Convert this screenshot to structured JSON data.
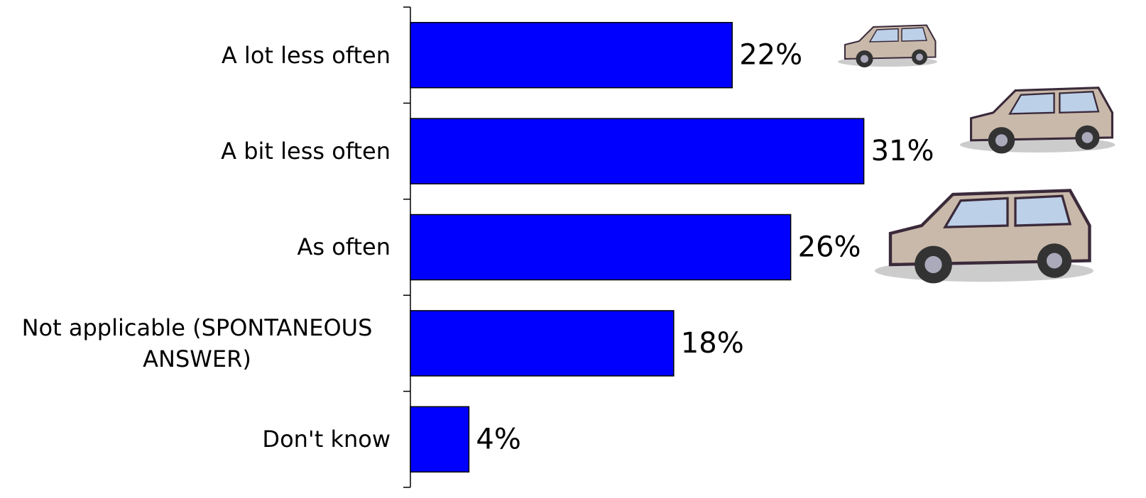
{
  "chart_data": {
    "type": "bar",
    "orientation": "horizontal",
    "categories": [
      "A lot less often",
      "A bit less often",
      "As often",
      "Not applicable (SPONTANEOUS ANSWER)",
      "Don't know"
    ],
    "values": [
      22,
      31,
      26,
      18,
      4
    ],
    "value_labels": [
      "22%",
      "31%",
      "26%",
      "18%",
      "4%"
    ],
    "color": "#0000ff",
    "xlim": [
      0,
      50
    ]
  }
}
